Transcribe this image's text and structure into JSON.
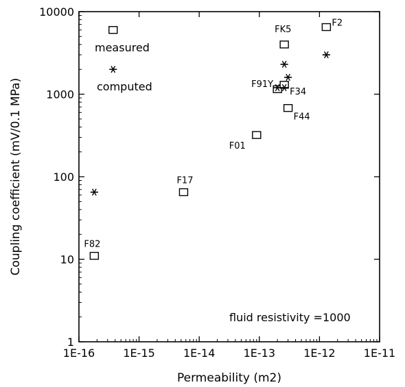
{
  "chart_data": {
    "type": "scatter",
    "xlabel": "Permeability (m2)",
    "ylabel": "Coupling coefficient (mV/0.1 MPa)",
    "xscale": "log",
    "yscale": "log",
    "xlim": [
      1e-16,
      1e-11
    ],
    "ylim": [
      1,
      10000
    ],
    "x_tick_labels": [
      "1E-16",
      "1E-15",
      "1E-14",
      "1E-13",
      "1E-12",
      "1E-11"
    ],
    "y_tick_labels": [
      "1",
      "10",
      "100",
      "1000",
      "10000"
    ],
    "grid": false,
    "legend_position": "top-left",
    "annotation": "fluid resistivity =1000",
    "series": [
      {
        "name": "measured",
        "marker": "square",
        "points": [
          {
            "label": "F82",
            "x": 1.8e-16,
            "y": 11
          },
          {
            "label": "F17",
            "x": 5.5e-15,
            "y": 65
          },
          {
            "label": "F01",
            "x": 9e-14,
            "y": 320
          },
          {
            "label": "F91Y",
            "x": 2e-13,
            "y": 1150
          },
          {
            "label": "F34",
            "x": 2.6e-13,
            "y": 1300
          },
          {
            "label": "F44",
            "x": 3e-13,
            "y": 680
          },
          {
            "label": "FK5",
            "x": 2.6e-13,
            "y": 4000
          },
          {
            "label": "F2",
            "x": 1.3e-12,
            "y": 6500
          },
          {
            "label": "",
            "x": 3.7e-16,
            "y": 6000
          }
        ]
      },
      {
        "name": "computed",
        "marker": "asterisk",
        "points": [
          {
            "x": 1.8e-16,
            "y": 65
          },
          {
            "x": 2e-13,
            "y": 1200
          },
          {
            "x": 2.6e-13,
            "y": 1200
          },
          {
            "x": 2.6e-13,
            "y": 2300
          },
          {
            "x": 3e-13,
            "y": 1600
          },
          {
            "x": 1.3e-12,
            "y": 3000
          },
          {
            "x": 3.7e-16,
            "y": 2000
          }
        ]
      }
    ]
  }
}
